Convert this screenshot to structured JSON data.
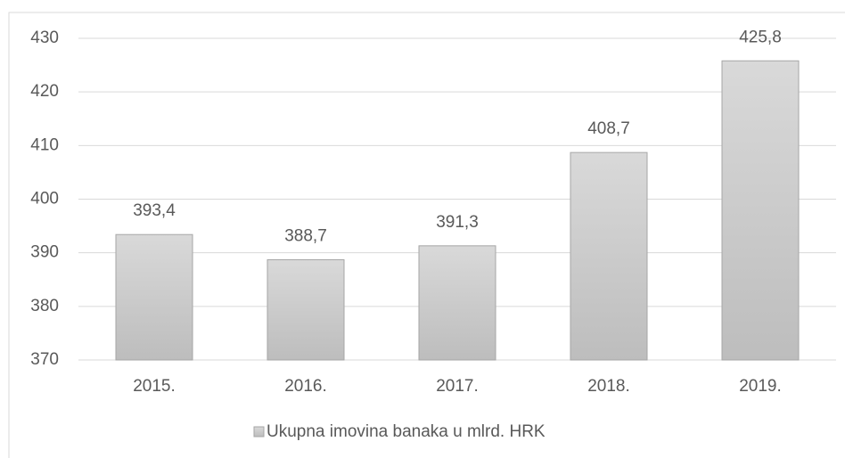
{
  "chart_data": {
    "type": "bar",
    "categories": [
      "2015.",
      "2016.",
      "2017.",
      "2018.",
      "2019."
    ],
    "series": [
      {
        "name": "Ukupna imovina banaka u mlrd. HRK",
        "color": "#bdbdbd",
        "values": [
          393.4,
          388.7,
          391.3,
          408.7,
          425.8
        ],
        "value_labels": [
          "393,4",
          "388,7",
          "391,3",
          "408,7",
          "425,8"
        ]
      }
    ],
    "ylim": [
      370,
      430
    ],
    "yticks": [
      370,
      380,
      390,
      400,
      410,
      420,
      430
    ],
    "grid": true,
    "legend": "bottom"
  }
}
